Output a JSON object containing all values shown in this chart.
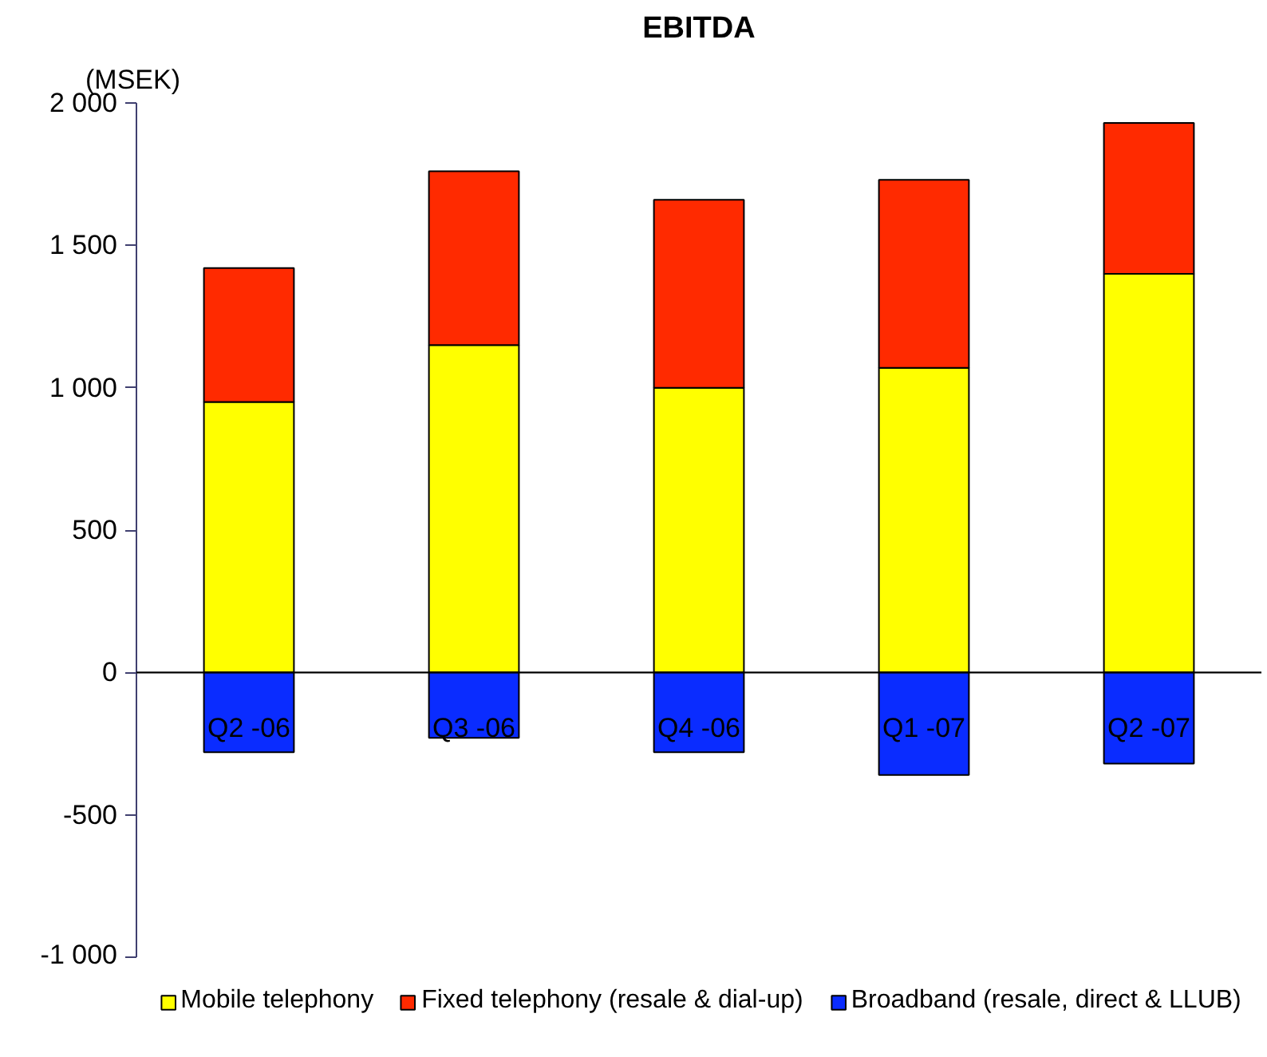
{
  "chart_data": {
    "type": "bar",
    "title": "EBITDA",
    "ylabel": "(MSEK)",
    "categories": [
      "Q2 -06",
      "Q3 -06",
      "Q4 -06",
      "Q1 -07",
      "Q2 -07"
    ],
    "stacked": true,
    "series": [
      {
        "name": "Mobile telephony",
        "color": "#ffff00",
        "values": [
          950,
          1150,
          1000,
          1070,
          1400
        ]
      },
      {
        "name": "Fixed telephony (resale & dial-up)",
        "color": "#ff2a00",
        "values": [
          470,
          610,
          660,
          660,
          530
        ]
      },
      {
        "name": "Broadband (resale, direct & LLUB)",
        "color": "#0a2cff",
        "values": [
          -280,
          -230,
          -280,
          -360,
          -320
        ]
      }
    ],
    "ylim": [
      -1000,
      2000
    ],
    "yticks": [
      {
        "value": -1000,
        "label": "-1 000"
      },
      -500,
      0,
      500,
      {
        "value": 1000,
        "label": "1 000"
      },
      {
        "value": 1500,
        "label": "1 500"
      },
      {
        "value": 2000,
        "label": "2 000"
      }
    ],
    "legend": "bottom"
  }
}
